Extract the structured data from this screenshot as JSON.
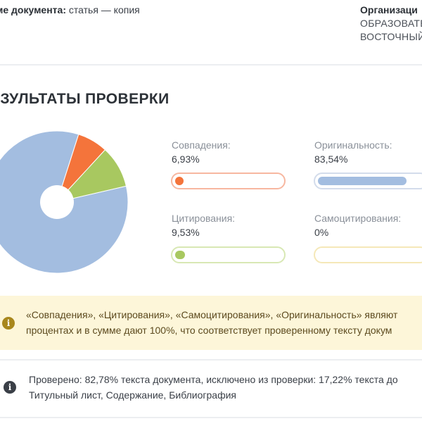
{
  "header": {
    "doc_name_label": "ме документа:",
    "doc_name_value": "статья — копия",
    "org_label": "Организаци",
    "org_line1": "ОБРАЗОВАТЕ",
    "org_line2": "ВОСТОЧНЫЙ"
  },
  "results": {
    "title": "ЕЗУЛЬТАТЫ ПРОВЕРКИ"
  },
  "chart_data": {
    "type": "pie",
    "donut": true,
    "series": [
      {
        "name": "Совпадения",
        "value": 6.93,
        "color": "#f4743b"
      },
      {
        "name": "Цитирования",
        "value": 9.53,
        "color": "#a8c860"
      },
      {
        "name": "Самоцитирования",
        "value": 0,
        "color": "#f2e29a"
      },
      {
        "name": "Оригинальность",
        "value": 83.54,
        "color": "#a3bde0"
      }
    ]
  },
  "stats": {
    "matches": {
      "label": "Совпадения:",
      "value": "6,93%",
      "percent": 6.93,
      "color": "#f4743b",
      "border": "#f7b7a0"
    },
    "originality": {
      "label": "Оригинальность:",
      "value": "83,54%",
      "percent": 83.54,
      "color": "#a3bde0",
      "border": "#d3dceb"
    },
    "citations": {
      "label": "Цитирования:",
      "value": "9,53%",
      "percent": 9.53,
      "color": "#a8c860",
      "border": "#d8e8b4"
    },
    "self_citations": {
      "label": "Самоцитирования:",
      "value": "0%",
      "percent": 0,
      "color": "#f2e29a",
      "border": "#f5e8b8"
    }
  },
  "notices": {
    "warning_line1": "«Совпадения», «Цитирования», «Самоцитирования», «Оригинальность» являют",
    "warning_line2": "процентах и в сумме дают 100%, что соответствует проверенному тексту докум",
    "info_line1": "Проверено: 82,78% текста документа, исключено из проверки: 17,22% текста до",
    "info_line2": "Титульный лист, Содержание, Библиография",
    "warning_color": "#a8871c",
    "info_color": "#3a3f47"
  }
}
